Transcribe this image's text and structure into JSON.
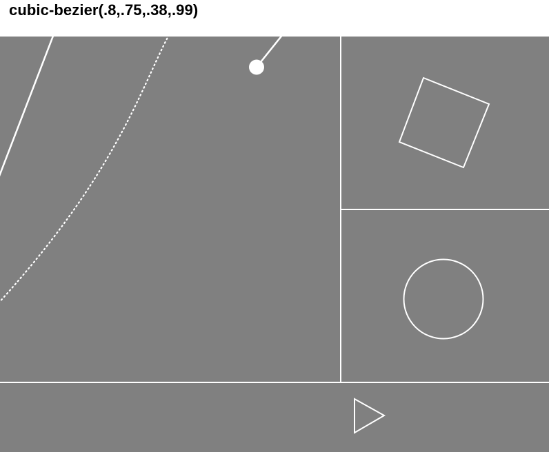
{
  "header": {
    "title": "cubic-bezier(.8,.75,.38,.99)"
  },
  "easing": {
    "p1": [
      0.8,
      0.75
    ],
    "p2": [
      0.38,
      0.99
    ]
  },
  "colors": {
    "page_background": "#ffffff",
    "stage_background": "#808080",
    "stroke": "#ffffff",
    "title_text": "#000000"
  },
  "icons": {
    "rotate_preview": "square-outline-icon",
    "scale_preview": "circle-outline-icon",
    "play_button": "play-triangle-icon"
  }
}
